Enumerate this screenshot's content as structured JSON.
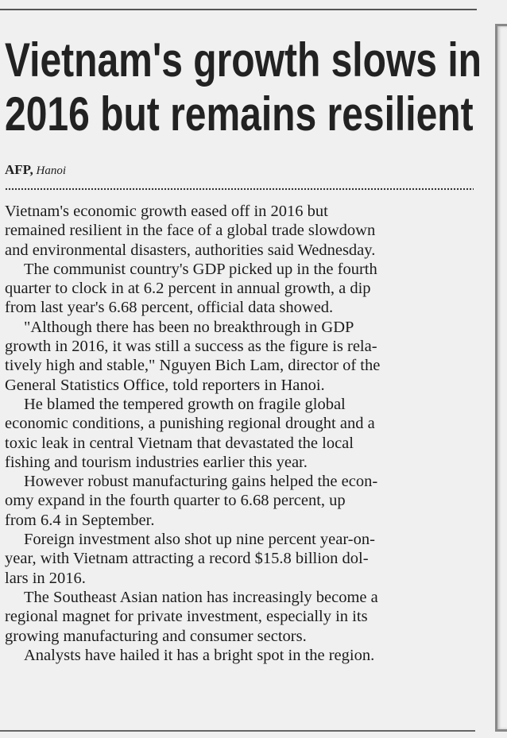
{
  "headline": {
    "lines": [
      "Vietnam's growth slows in",
      "2016 but remains resilient"
    ]
  },
  "byline": {
    "agency": "AFP,",
    "place": "Hanoi"
  },
  "body": {
    "lines": [
      {
        "text": "Vietnam's economic growth eased off in 2016 but",
        "indent": false
      },
      {
        "text": "remained resilient in the face of a global trade slowdown",
        "indent": false
      },
      {
        "text": "and environmental disasters, authorities said Wednesday.",
        "indent": false
      },
      {
        "text": "The communist country's GDP picked up in the fourth",
        "indent": true
      },
      {
        "text": "quarter to clock in at 6.2 percent in annual growth, a dip",
        "indent": false
      },
      {
        "text": "from last year's 6.68 percent, official data showed.",
        "indent": false
      },
      {
        "text": "\"Although there has been no breakthrough in GDP",
        "indent": true
      },
      {
        "text": "growth in 2016, it was still a success as the figure is rela-",
        "indent": false
      },
      {
        "text": "tively high and stable,\" Nguyen Bich Lam, director of the",
        "indent": false
      },
      {
        "text": "General Statistics Office, told reporters in Hanoi.",
        "indent": false
      },
      {
        "text": "He blamed the tempered growth on fragile global",
        "indent": true
      },
      {
        "text": "economic conditions, a punishing regional drought and a",
        "indent": false
      },
      {
        "text": "toxic leak in central Vietnam that devastated the local",
        "indent": false
      },
      {
        "text": "fishing and tourism industries earlier this year.",
        "indent": false
      },
      {
        "text": "However robust manufacturing gains helped the econ-",
        "indent": true
      },
      {
        "text": "omy expand in the fourth quarter to 6.68 percent, up",
        "indent": false
      },
      {
        "text": "from 6.4 in September.",
        "indent": false
      },
      {
        "text": "Foreign investment also shot up nine percent year-on-",
        "indent": true
      },
      {
        "text": "year, with Vietnam attracting a record $15.8 billion dol-",
        "indent": false
      },
      {
        "text": "lars in 2016.",
        "indent": false
      },
      {
        "text": "The Southeast Asian nation has increasingly become a",
        "indent": true
      },
      {
        "text": "regional magnet for private investment, especially in its",
        "indent": false
      },
      {
        "text": "growing manufacturing and consumer sectors.",
        "indent": false
      },
      {
        "text": "Analysts have hailed it has a bright spot in the region.",
        "indent": true
      }
    ]
  }
}
